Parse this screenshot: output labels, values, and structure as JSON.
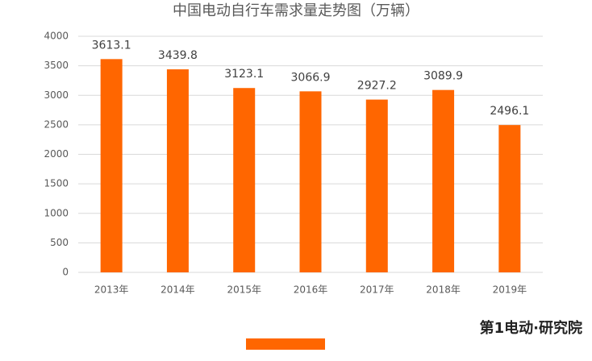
{
  "chart_data": {
    "type": "bar",
    "title": "中国电动自行车需求量走势图（万辆）",
    "categories": [
      "2013年",
      "2014年",
      "2015年",
      "2016年",
      "2017年",
      "2018年",
      "2019年"
    ],
    "values": [
      3613.1,
      3439.8,
      3123.1,
      3066.9,
      2927.2,
      3089.9,
      2496.1
    ],
    "color": "#ff6600",
    "ylim": [
      0,
      4000
    ],
    "yticks": [
      0,
      500,
      1000,
      1500,
      2000,
      2500,
      3000,
      3500,
      4000
    ],
    "grid": true,
    "data_labels": true
  },
  "logo": "第1电动·研究院"
}
